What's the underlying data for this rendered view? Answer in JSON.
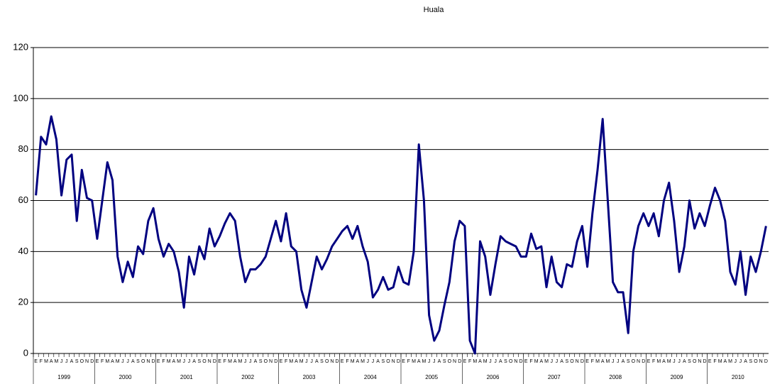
{
  "chart_data": {
    "type": "line",
    "title": "Huala",
    "categories": [
      "E",
      "F",
      "M",
      "A",
      "M",
      "J",
      "J",
      "A",
      "S",
      "O",
      "N",
      "D",
      "E",
      "F",
      "M",
      "A",
      "M",
      "J",
      "J",
      "A",
      "S",
      "O",
      "N",
      "D",
      "E",
      "F",
      "M",
      "A",
      "M",
      "J",
      "J",
      "A",
      "S",
      "O",
      "N",
      "D",
      "E",
      "F",
      "M",
      "A",
      "M",
      "J",
      "J",
      "A",
      "S",
      "O",
      "N",
      "D",
      "E",
      "F",
      "M",
      "A",
      "M",
      "J",
      "J",
      "A",
      "S",
      "O",
      "N",
      "D",
      "E",
      "F",
      "M",
      "A",
      "M",
      "J",
      "J",
      "A",
      "S",
      "O",
      "N",
      "D",
      "E",
      "F",
      "M",
      "A",
      "M",
      "J",
      "J",
      "A",
      "S",
      "O",
      "N",
      "D",
      "E",
      "F",
      "M",
      "A",
      "M",
      "J",
      "J",
      "A",
      "S",
      "O",
      "N",
      "D",
      "E",
      "F",
      "M",
      "A",
      "M",
      "J",
      "J",
      "A",
      "S",
      "O",
      "N",
      "D",
      "E",
      "F",
      "M",
      "A",
      "M",
      "J",
      "J",
      "A",
      "S",
      "O",
      "N",
      "D",
      "E",
      "F",
      "M",
      "A",
      "M",
      "J",
      "J",
      "A",
      "S",
      "O",
      "N",
      "D",
      "E",
      "F",
      "M",
      "A",
      "M",
      "J",
      "J",
      "A",
      "S",
      "O",
      "N",
      "D"
    ],
    "years": [
      "1999",
      "2000",
      "2001",
      "2002",
      "2003",
      "2004",
      "2005",
      "2006",
      "2007",
      "2008",
      "2009",
      "2010"
    ],
    "color": "#000080",
    "values": [
      62,
      85,
      82,
      93,
      84,
      62,
      76,
      78,
      52,
      72,
      61,
      60,
      45,
      60,
      75,
      68,
      38,
      28,
      36,
      30,
      42,
      39,
      52,
      57,
      45,
      38,
      43,
      40,
      32,
      18,
      38,
      31,
      42,
      37,
      49,
      42,
      46,
      51,
      55,
      52,
      38,
      28,
      33,
      33,
      35,
      38,
      45,
      52,
      44,
      55,
      42,
      40,
      25,
      18,
      28,
      38,
      33,
      37,
      42,
      45,
      48,
      50,
      45,
      50,
      42,
      36,
      22,
      25,
      30,
      25,
      26,
      34,
      28,
      27,
      40,
      82,
      60,
      15,
      5,
      9,
      19,
      28,
      44,
      52,
      50,
      5,
      0,
      44,
      38,
      23,
      35,
      46,
      44,
      43,
      42,
      38,
      38,
      47,
      41,
      42,
      26,
      38,
      28,
      26,
      35,
      34,
      44,
      50,
      34,
      55,
      72,
      92,
      60,
      28,
      24,
      24,
      8,
      40,
      50,
      55,
      50,
      55,
      46,
      60,
      67,
      52,
      32,
      42,
      60,
      49,
      55,
      50,
      58,
      65,
      60,
      52,
      32,
      27,
      40,
      23,
      38,
      32,
      40,
      50
    ],
    "ylim": [
      0,
      120
    ],
    "yticks": [
      0,
      20,
      40,
      60,
      80,
      100,
      120
    ],
    "grid": true
  }
}
